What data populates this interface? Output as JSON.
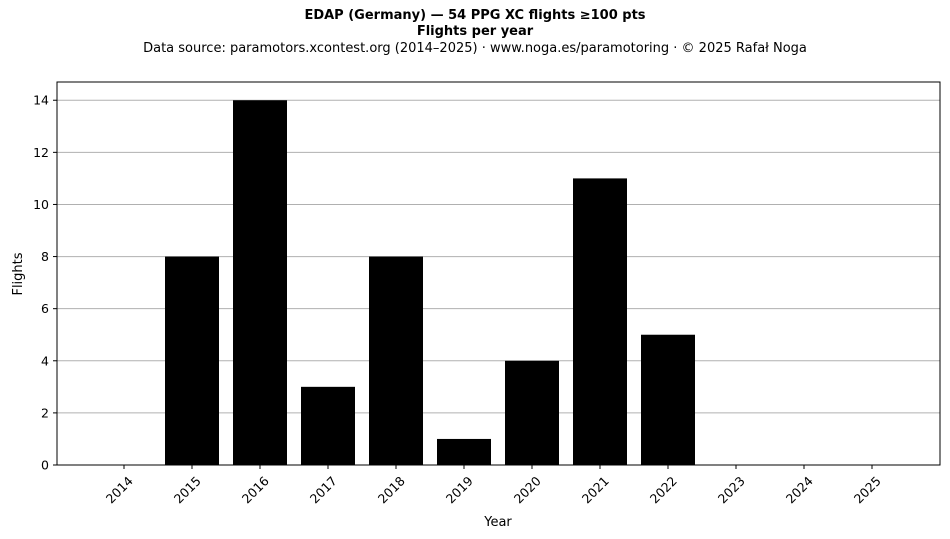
{
  "header": {
    "title": "EDAP (Germany)  —  54 PPG XC flights ≥100 pts",
    "subtitle": "Flights per year",
    "source": "Data source: paramotors.xcontest.org (2014–2025)  ·  www.noga.es/paramotoring  ·  © 2025 Rafał Noga"
  },
  "chart_data": {
    "type": "bar",
    "title": "EDAP (Germany)  —  54 PPG XC flights ≥100 pts",
    "subtitle": "Flights per year",
    "xlabel": "Year",
    "ylabel": "Flights",
    "categories": [
      "2014",
      "2015",
      "2016",
      "2017",
      "2018",
      "2019",
      "2020",
      "2021",
      "2022",
      "2023",
      "2024",
      "2025"
    ],
    "values": [
      0,
      8,
      14,
      3,
      8,
      1,
      4,
      11,
      5,
      0,
      0,
      0
    ],
    "ylim": [
      0,
      14.7
    ],
    "yticks": [
      0,
      2,
      4,
      6,
      8,
      10,
      12,
      14
    ],
    "grid": "horizontal",
    "legend": "none",
    "bar_color": "#000000",
    "grid_color": "#b0b0b0"
  }
}
